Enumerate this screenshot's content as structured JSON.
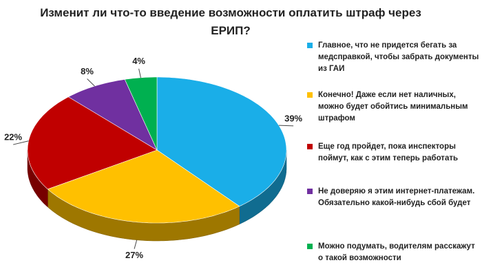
{
  "chart_data": {
    "type": "pie3d",
    "title": "Изменит ли что-то введение возможности оплатить штраф через ЕРИП?",
    "categories": [
      "Главное, что не придется бегать за медсправкой, чтобы забрать документы из ГАИ",
      "Конечно! Даже если нет наличных, можно будет обойтись минимальным штрафом",
      "Еще год пройдет, пока инспекторы поймут, как с этим теперь работать",
      "Не доверяю я этим интернет-платежам. Обязательно какой-нибудь сбой будет",
      "Можно подумать, водителям расскажут о такой возможности"
    ],
    "values": [
      39,
      27,
      22,
      8,
      4
    ],
    "value_labels": [
      "39%",
      "27%",
      "22%",
      "8%",
      "4%"
    ],
    "colors": [
      "#1aaee8",
      "#ffc000",
      "#c00000",
      "#7030a0",
      "#00b050"
    ],
    "legend": "right"
  }
}
